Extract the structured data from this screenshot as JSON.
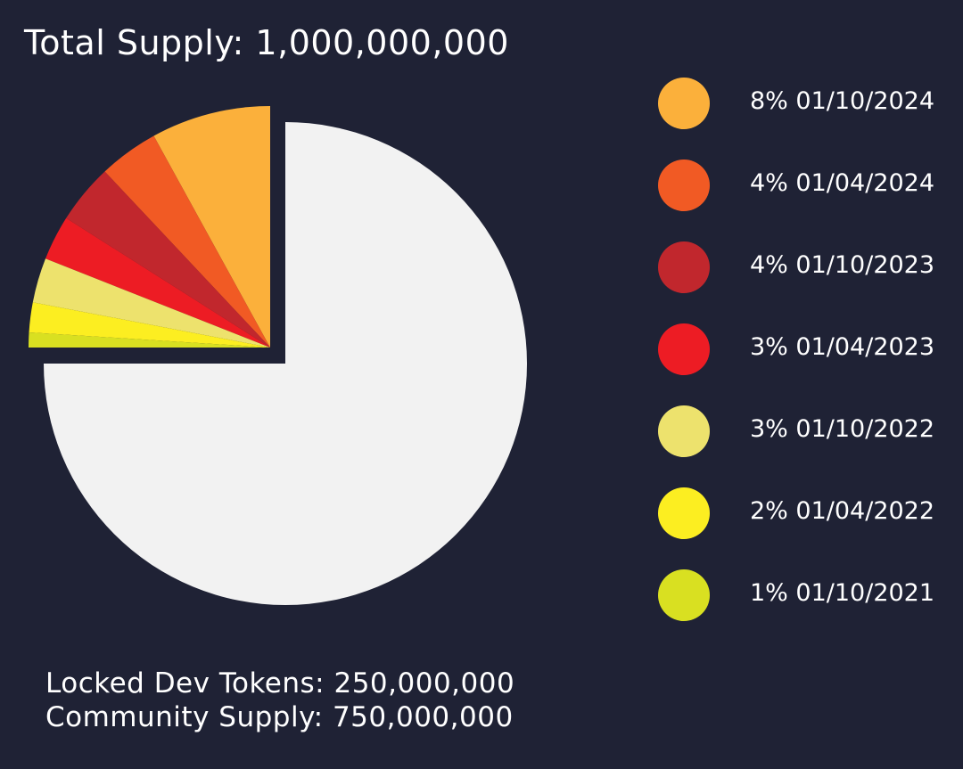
{
  "title": "Total Supply: 1,000,000,000",
  "footer": {
    "locked": "Locked Dev Tokens: 250,000,000",
    "community": "Community Supply: 750,000,000"
  },
  "chart_data": {
    "type": "pie",
    "title": "Total Supply: 1,000,000,000",
    "exploded_quarter_percent": 25,
    "slices": [
      {
        "label": "8% 01/10/2024",
        "value": 8,
        "color": "#fbb03b"
      },
      {
        "label": "4% 01/04/2024",
        "value": 4,
        "color": "#f15a24"
      },
      {
        "label": "4% 01/10/2023",
        "value": 4,
        "color": "#c1272d"
      },
      {
        "label": "3% 01/04/2023",
        "value": 3,
        "color": "#ed1c24"
      },
      {
        "label": "3% 01/10/2022",
        "value": 3,
        "color": "#ede26d"
      },
      {
        "label": "2% 01/04/2022",
        "value": 2,
        "color": "#fcee21"
      },
      {
        "label": "1% 01/10/2021",
        "value": 1,
        "color": "#d9e021"
      }
    ],
    "remainder": {
      "value": 75,
      "color": "#f2f2f2"
    },
    "legend_position": "right"
  }
}
